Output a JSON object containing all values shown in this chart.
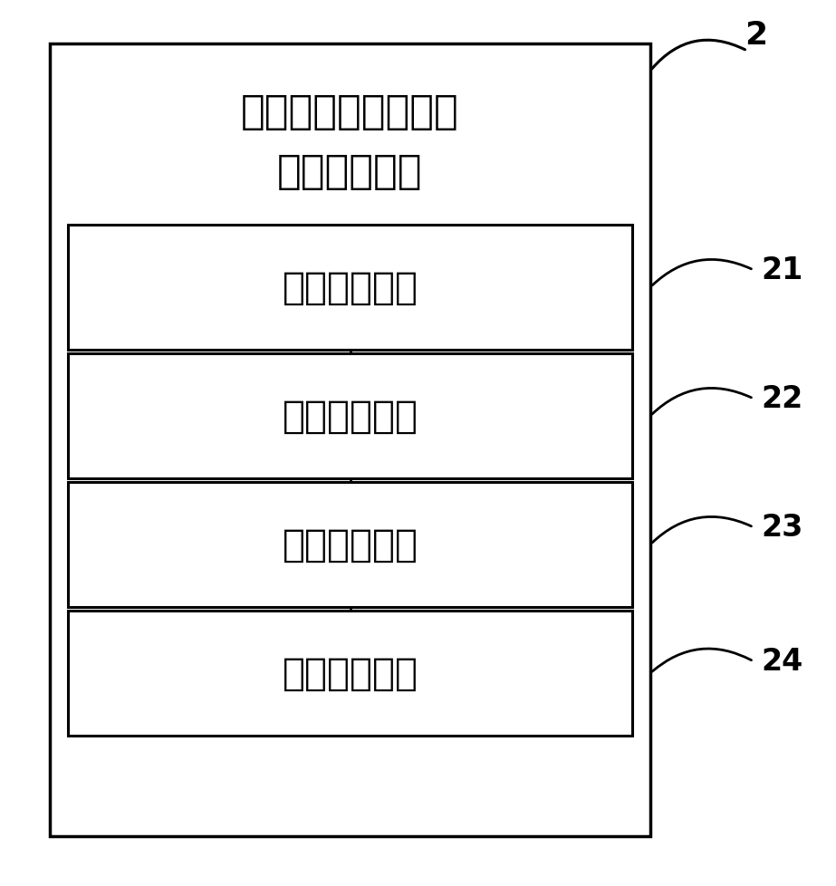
{
  "title_line1": "用于连续重整装置的",
  "title_line2": "实时优化设备",
  "boxes": [
    {
      "label": "模型建立单元",
      "id": "21"
    },
    {
      "label": "数据整理单元",
      "id": "22"
    },
    {
      "label": "参数求解单元",
      "id": "23"
    },
    {
      "label": "优化实现单元",
      "id": "24"
    }
  ],
  "outer_label": "2",
  "bg_color": "#ffffff",
  "box_color": "#ffffff",
  "border_color": "#000000",
  "text_color": "#000000",
  "font_size_title": 32,
  "font_size_box": 30,
  "font_size_label": 24
}
